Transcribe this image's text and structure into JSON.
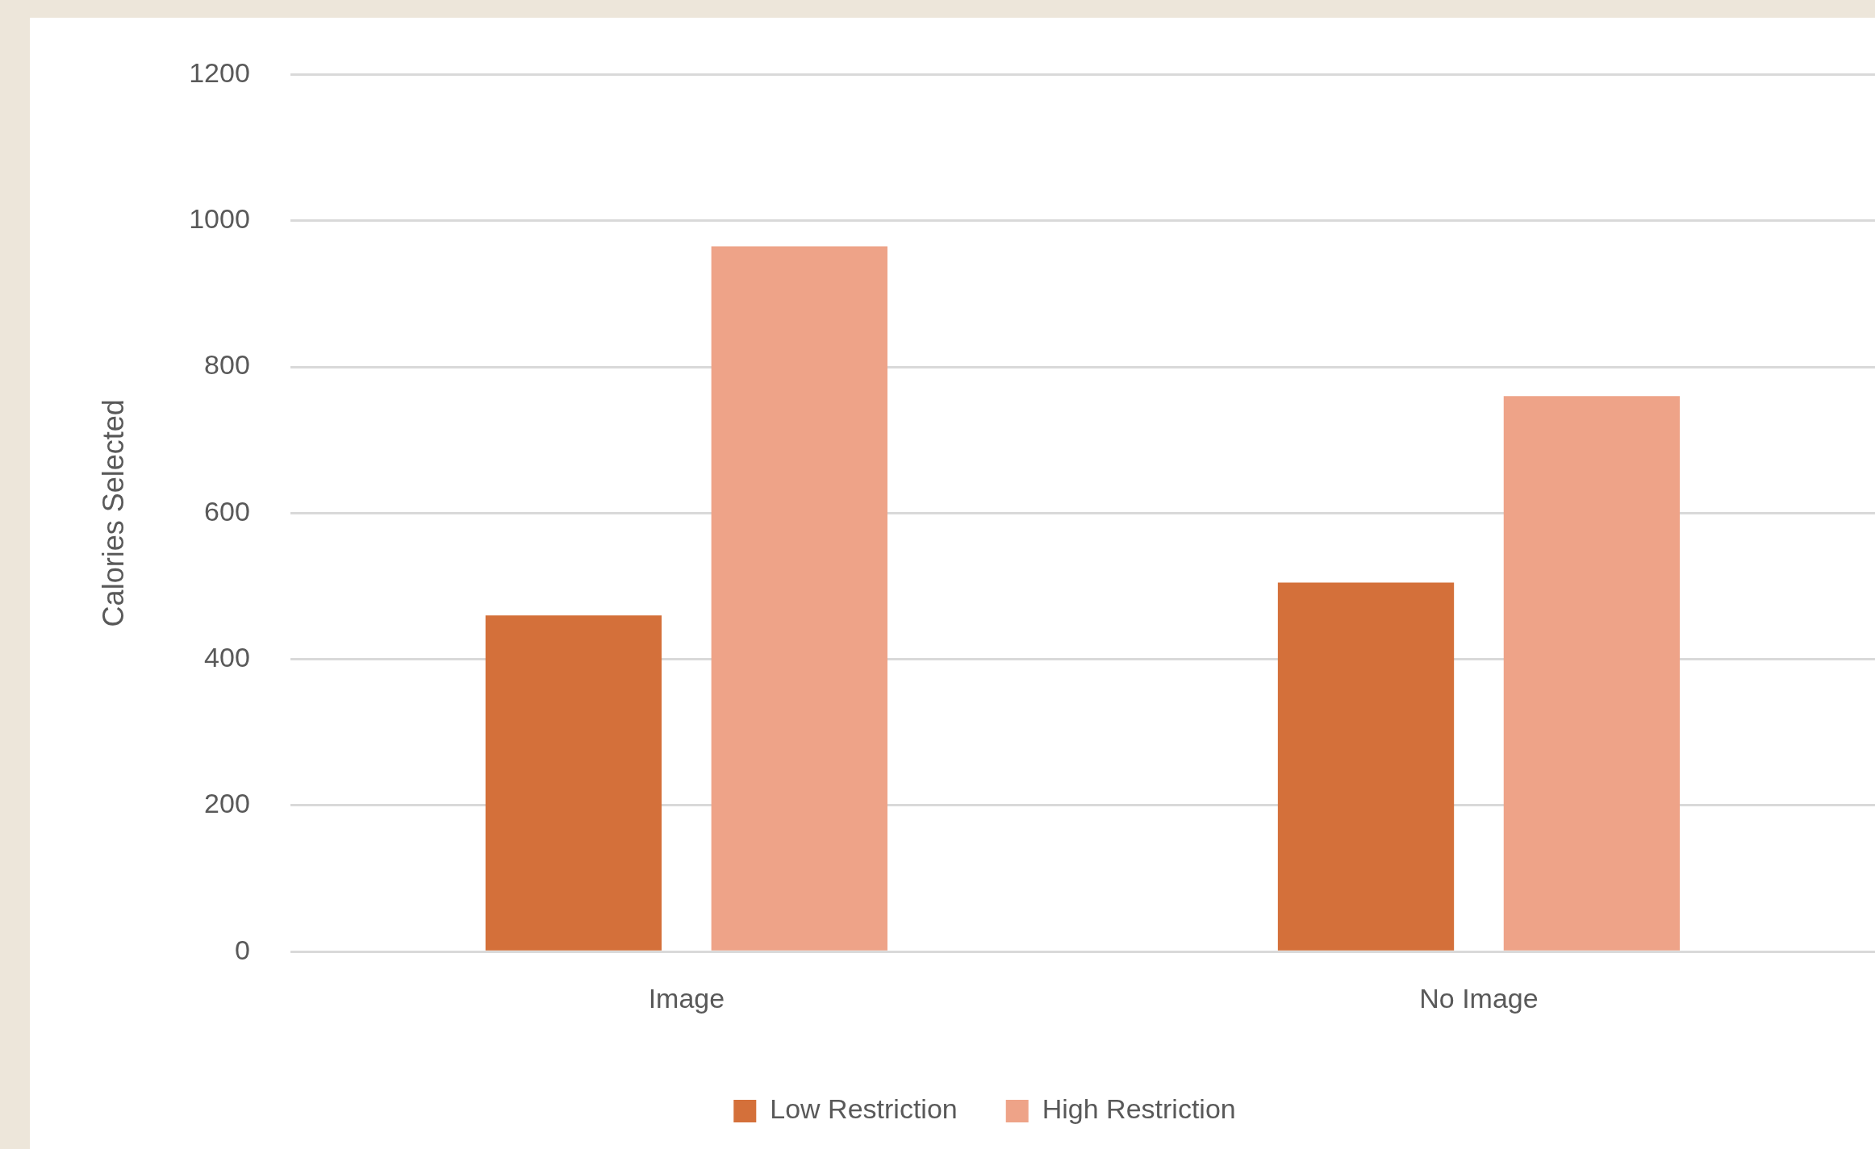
{
  "chart_data": {
    "type": "bar",
    "ylabel": "Calories Selected",
    "categories": [
      "Image",
      "No Image"
    ],
    "series": [
      {
        "name": "Low Restriction",
        "color": "#d4703a",
        "values": [
          460,
          505
        ]
      },
      {
        "name": "High Restriction",
        "color": "#eea388",
        "values": [
          965,
          760
        ]
      }
    ],
    "ylim": [
      0,
      1200
    ],
    "yticks": [
      0,
      200,
      400,
      600,
      800,
      1000,
      1200
    ],
    "grid": "y",
    "legend": "bottom"
  }
}
